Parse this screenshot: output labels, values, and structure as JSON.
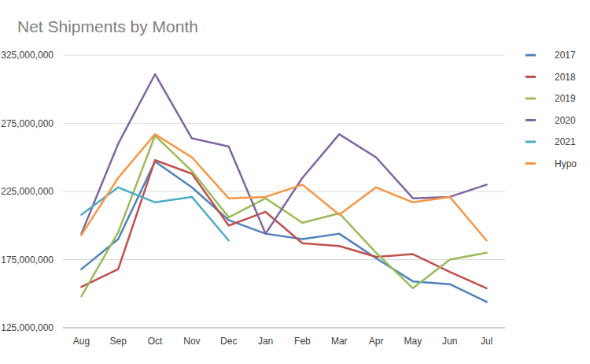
{
  "chart_data": {
    "type": "line",
    "title": "Net Shipments by Month",
    "categories": [
      "Aug",
      "Sep",
      "Oct",
      "Nov",
      "Dec",
      "Jan",
      "Feb",
      "Mar",
      "Apr",
      "May",
      "Jun",
      "Jul"
    ],
    "series": [
      {
        "name": "2017",
        "color": "#4f81bd",
        "values": [
          168000000,
          190000000,
          247000000,
          228000000,
          204000000,
          194000000,
          190000000,
          194000000,
          176000000,
          159000000,
          157000000,
          144000000
        ]
      },
      {
        "name": "2018",
        "color": "#c0504d",
        "values": [
          155000000,
          168000000,
          248000000,
          238000000,
          200000000,
          210000000,
          187000000,
          185000000,
          177000000,
          179000000,
          166000000,
          154000000
        ]
      },
      {
        "name": "2019",
        "color": "#9bbb59",
        "values": [
          148000000,
          195000000,
          266000000,
          240000000,
          206000000,
          220000000,
          202000000,
          209000000,
          180000000,
          154000000,
          175000000,
          180000000
        ]
      },
      {
        "name": "2020",
        "color": "#8064a2",
        "values": [
          194000000,
          260000000,
          311000000,
          264000000,
          258000000,
          194000000,
          235000000,
          267000000,
          250000000,
          220000000,
          221000000,
          230000000
        ]
      },
      {
        "name": "2021",
        "color": "#4bacc6",
        "values": [
          208000000,
          228000000,
          217000000,
          221000000,
          189000000,
          null,
          null,
          null,
          null,
          null,
          null,
          null
        ]
      },
      {
        "name": "Hypo",
        "color": "#f79646",
        "values": [
          193000000,
          235000000,
          267000000,
          250000000,
          220000000,
          221000000,
          230000000,
          208000000,
          228000000,
          217000000,
          221000000,
          189000000
        ]
      }
    ],
    "ylim": [
      125000000,
      325000000
    ],
    "yticks": [
      {
        "value": 125000000,
        "label": "125,000,000"
      },
      {
        "value": 175000000,
        "label": "175,000,000"
      },
      {
        "value": 225000000,
        "label": "225,000,000"
      },
      {
        "value": 275000000,
        "label": "275,000,000"
      },
      {
        "value": 325000000,
        "label": "325,000,000"
      }
    ],
    "grid": true,
    "legend": "right"
  }
}
